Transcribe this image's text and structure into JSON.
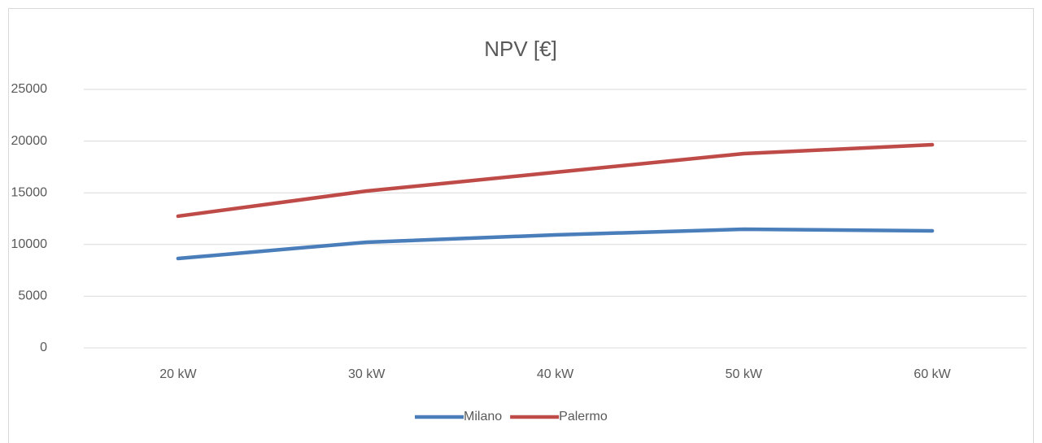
{
  "chart_data": {
    "type": "line",
    "title": "NPV [€]",
    "categories": [
      "20 kW",
      "30 kW",
      "40 kW",
      "50 kW",
      "60 kW"
    ],
    "series": [
      {
        "name": "Milano",
        "color": "#4a7ebb",
        "values": [
          8650,
          10220,
          10930,
          11480,
          11320
        ]
      },
      {
        "name": "Palermo",
        "color": "#be4b48",
        "values": [
          12740,
          15170,
          16980,
          18790,
          19650
        ]
      }
    ],
    "ylim": [
      0,
      25000
    ],
    "yticks": [
      0,
      5000,
      10000,
      15000,
      20000,
      25000
    ],
    "grid": true,
    "legend": "bottom"
  }
}
